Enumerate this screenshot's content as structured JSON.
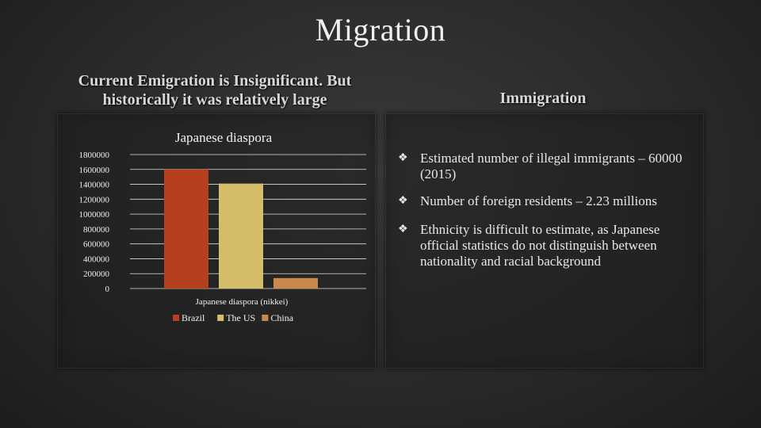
{
  "slide": {
    "title": "Migration",
    "left_heading": "Current Emigration is Insignificant. But historically it was relatively large",
    "right_heading": "Immigration"
  },
  "bullets": [
    {
      "icon": "diamond-bullet-icon",
      "text": "Estimated number of illegal immigrants – 60000 (2015)"
    },
    {
      "icon": "diamond-bullet-icon",
      "text": "Number of foreign residents – 2.23 millions"
    },
    {
      "icon": "diamond-bullet-icon",
      "text": "Ethnicity is difficult to estimate, as Japanese official statistics do not distinguish between nationality and racial background"
    }
  ],
  "chart_data": {
    "type": "bar",
    "title": "Japanese diaspora",
    "categories": [
      "Japanese diaspora (nikkei)"
    ],
    "series": [
      {
        "name": "Brazil",
        "values": [
          1600000
        ],
        "color": "#b5401f"
      },
      {
        "name": "The US",
        "values": [
          1410000
        ],
        "color": "#d4be6c"
      },
      {
        "name": "China",
        "values": [
          140000
        ],
        "color": "#c8894a"
      }
    ],
    "ylim": [
      0,
      1800000
    ],
    "yticks": [
      0,
      200000,
      400000,
      600000,
      800000,
      1000000,
      1200000,
      1400000,
      1600000,
      1800000
    ],
    "grid": true,
    "legend": "bottom",
    "gridline_color": "#ffffff",
    "text_color": "#f0f0f0"
  }
}
